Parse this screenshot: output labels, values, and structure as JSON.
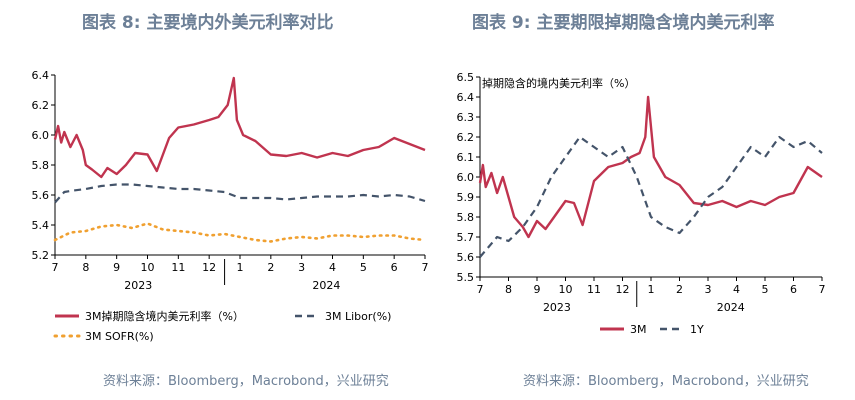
{
  "left": {
    "title": "图表 8: 主要境内外美元利率对比",
    "source": "资料来源：Bloomberg，Macrobond，兴业研究",
    "chart_data": {
      "type": "line",
      "title": "图表 8: 主要境内外美元利率对比",
      "ylim": [
        5.2,
        6.4
      ],
      "yticks": [
        "6.4",
        "6.2",
        "6.0",
        "5.8",
        "5.6",
        "5.4",
        "5.2"
      ],
      "ytick_values": [
        6.4,
        6.2,
        6.0,
        5.8,
        5.6,
        5.4,
        5.2
      ],
      "xticks": [
        "7",
        "8",
        "9",
        "10",
        "11",
        "12",
        "1",
        "2",
        "3",
        "4",
        "5",
        "6",
        "7"
      ],
      "years": [
        "2023",
        "2024"
      ],
      "grid": false,
      "legend_position": "bottom",
      "series": [
        {
          "name": "3M掉期隐含境内美元利率（%）",
          "style": "solid",
          "color": "#c0344f",
          "x": [
            0,
            0.1,
            0.2,
            0.3,
            0.5,
            0.7,
            0.9,
            1.0,
            1.2,
            1.5,
            1.7,
            2.0,
            2.3,
            2.6,
            3.0,
            3.3,
            3.7,
            4.0,
            4.5,
            5.0,
            5.3,
            5.6,
            5.8,
            5.9,
            6.1,
            6.5,
            7.0,
            7.5,
            8.0,
            8.5,
            9.0,
            9.5,
            10.0,
            10.5,
            11.0,
            11.5,
            12.0
          ],
          "values": [
            5.97,
            6.06,
            5.95,
            6.02,
            5.92,
            6.0,
            5.9,
            5.8,
            5.77,
            5.72,
            5.78,
            5.74,
            5.8,
            5.88,
            5.87,
            5.76,
            5.98,
            6.05,
            6.07,
            6.1,
            6.12,
            6.2,
            6.38,
            6.1,
            6.0,
            5.96,
            5.87,
            5.86,
            5.88,
            5.85,
            5.88,
            5.86,
            5.9,
            5.92,
            5.98,
            5.94,
            5.9
          ]
        },
        {
          "name": "3M Libor(%)",
          "style": "dashed",
          "color": "#44546a",
          "x": [
            0,
            0.3,
            0.6,
            1.0,
            1.5,
            2.0,
            2.5,
            3.0,
            3.5,
            4.0,
            4.5,
            5.0,
            5.5,
            6.0,
            6.5,
            7.0,
            7.5,
            8.0,
            8.5,
            9.0,
            9.5,
            10.0,
            10.5,
            11.0,
            11.5,
            12.0
          ],
          "values": [
            5.55,
            5.62,
            5.63,
            5.64,
            5.66,
            5.67,
            5.67,
            5.66,
            5.65,
            5.64,
            5.64,
            5.63,
            5.62,
            5.58,
            5.58,
            5.58,
            5.57,
            5.58,
            5.59,
            5.59,
            5.59,
            5.6,
            5.59,
            5.6,
            5.59,
            5.56
          ]
        },
        {
          "name": "3M SOFR(%)",
          "style": "dotted",
          "color": "#f0a030",
          "x": [
            0,
            0.5,
            1.0,
            1.5,
            2.0,
            2.5,
            3.0,
            3.5,
            4.0,
            4.5,
            5.0,
            5.5,
            6.0,
            6.5,
            7.0,
            7.5,
            8.0,
            8.5,
            9.0,
            9.5,
            10.0,
            10.5,
            11.0,
            11.5,
            12.0
          ],
          "values": [
            5.3,
            5.35,
            5.36,
            5.39,
            5.4,
            5.38,
            5.41,
            5.37,
            5.36,
            5.35,
            5.33,
            5.34,
            5.32,
            5.3,
            5.29,
            5.31,
            5.32,
            5.31,
            5.33,
            5.33,
            5.32,
            5.33,
            5.33,
            5.31,
            5.3
          ]
        }
      ]
    }
  },
  "right": {
    "title": "图表 9: 主要期限掉期隐含境内美元利率",
    "source": "资料来源：Bloomberg，Macrobond，兴业研究",
    "chart_data": {
      "type": "line",
      "title": "图表 9: 主要期限掉期隐含境内美元利率",
      "ylabel": "掉期隐含的境内美元利率（%）",
      "ylim": [
        5.5,
        6.5
      ],
      "yticks": [
        "6.5",
        "6.4",
        "6.3",
        "6.2",
        "6.1",
        "6.0",
        "5.9",
        "5.8",
        "5.7",
        "5.6",
        "5.5"
      ],
      "ytick_values": [
        6.5,
        6.4,
        6.3,
        6.2,
        6.1,
        6.0,
        5.9,
        5.8,
        5.7,
        5.6,
        5.5
      ],
      "xticks": [
        "7",
        "8",
        "9",
        "10",
        "11",
        "12",
        "1",
        "2",
        "3",
        "4",
        "5",
        "6",
        "7"
      ],
      "years": [
        "2023",
        "2024"
      ],
      "grid": false,
      "legend_position": "bottom",
      "series": [
        {
          "name": "3M",
          "style": "solid",
          "color": "#c0344f",
          "x": [
            0,
            0.1,
            0.2,
            0.4,
            0.6,
            0.8,
            1.0,
            1.2,
            1.5,
            1.7,
            2.0,
            2.3,
            2.6,
            3.0,
            3.3,
            3.6,
            4.0,
            4.5,
            5.0,
            5.3,
            5.6,
            5.8,
            5.9,
            6.1,
            6.5,
            7.0,
            7.5,
            8.0,
            8.5,
            9.0,
            9.5,
            10.0,
            10.5,
            11.0,
            11.5,
            12.0
          ],
          "values": [
            5.97,
            6.06,
            5.95,
            6.02,
            5.92,
            6.0,
            5.9,
            5.8,
            5.75,
            5.7,
            5.78,
            5.74,
            5.8,
            5.88,
            5.87,
            5.76,
            5.98,
            6.05,
            6.07,
            6.1,
            6.12,
            6.2,
            6.4,
            6.1,
            6.0,
            5.96,
            5.87,
            5.86,
            5.88,
            5.85,
            5.88,
            5.86,
            5.9,
            5.92,
            6.05,
            6.0
          ]
        },
        {
          "name": "1Y",
          "style": "dashed",
          "color": "#44546a",
          "x": [
            0,
            0.3,
            0.6,
            1.0,
            1.5,
            2.0,
            2.5,
            3.0,
            3.5,
            4.0,
            4.5,
            5.0,
            5.5,
            6.0,
            6.5,
            7.0,
            7.5,
            8.0,
            8.5,
            9.0,
            9.5,
            10.0,
            10.5,
            11.0,
            11.5,
            12.0
          ],
          "values": [
            5.6,
            5.65,
            5.7,
            5.68,
            5.75,
            5.85,
            6.0,
            6.1,
            6.2,
            6.15,
            6.1,
            6.15,
            6.0,
            5.8,
            5.75,
            5.72,
            5.8,
            5.9,
            5.95,
            6.05,
            6.15,
            6.1,
            6.2,
            6.15,
            6.18,
            6.12
          ]
        }
      ]
    }
  }
}
